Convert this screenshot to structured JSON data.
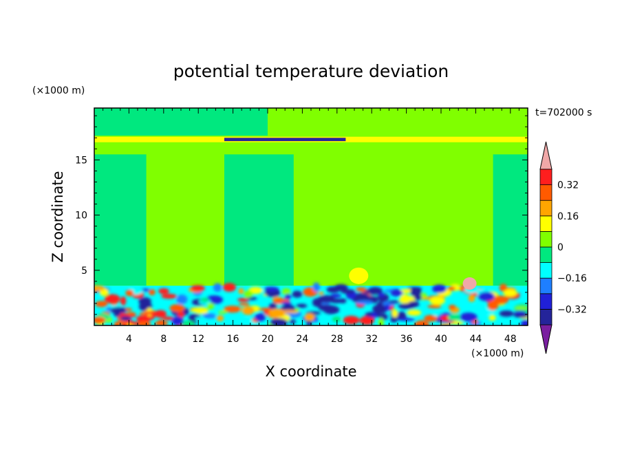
{
  "chart_data": {
    "type": "heatmap",
    "title": "potential temperature deviation",
    "time_label": "t=702000 s",
    "xlabel": "X coordinate",
    "ylabel": "Z coordinate",
    "x_unit": "(×1000 m)",
    "y_unit": "(×1000 m)",
    "xlim": [
      0,
      50
    ],
    "ylim": [
      0,
      19.7
    ],
    "x_ticks": [
      4,
      8,
      12,
      16,
      20,
      24,
      28,
      32,
      36,
      40,
      44,
      48
    ],
    "y_ticks": [
      5,
      10,
      15
    ],
    "colorbar": {
      "levels": [
        -0.4,
        -0.32,
        -0.24,
        -0.16,
        -0.08,
        0,
        0.08,
        0.16,
        0.24,
        0.32,
        0.4
      ],
      "tick_labels": [
        "0.32",
        "0.16",
        "0",
        "−0.16",
        "−0.32"
      ],
      "tick_values": [
        0.32,
        0.16,
        0,
        -0.16,
        -0.32
      ],
      "colors": [
        "#7a1fa0",
        "#24249a",
        "#2020d8",
        "#1e7fff",
        "#00ffff",
        "#00e87f",
        "#80ff00",
        "#ffff00",
        "#ffa500",
        "#ff5a00",
        "#ff1e1e",
        "#f0a8a8"
      ]
    },
    "regions": [
      {
        "name": "upper-layer-mid",
        "x": [
          0,
          50
        ],
        "z": [
          3.6,
          19.7
        ],
        "level": 0.04
      },
      {
        "name": "upper-slightly-negative-left",
        "x": [
          0,
          20
        ],
        "z": [
          17.2,
          19.7
        ],
        "level": -0.04
      },
      {
        "name": "mid-negative-left",
        "x": [
          0,
          6
        ],
        "z": [
          3.6,
          15.5
        ],
        "level": -0.04
      },
      {
        "name": "mid-negative-center",
        "x": [
          15,
          23
        ],
        "z": [
          3.6,
          15.5
        ],
        "level": -0.04
      },
      {
        "name": "mid-negative-right",
        "x": [
          46,
          50
        ],
        "z": [
          3.6,
          15.5
        ],
        "level": -0.04
      },
      {
        "name": "tropopause-warm-band",
        "x": [
          0,
          50
        ],
        "z": [
          16.6,
          17.1
        ],
        "level": 0.12
      },
      {
        "name": "tropopause-cold-band",
        "x": [
          15,
          29
        ],
        "z": [
          16.7,
          17.0
        ],
        "level": -0.36
      },
      {
        "name": "boundary-turbulent-layer",
        "x": [
          0,
          50
        ],
        "z": [
          0,
          3.6
        ],
        "level": -0.12
      }
    ]
  }
}
